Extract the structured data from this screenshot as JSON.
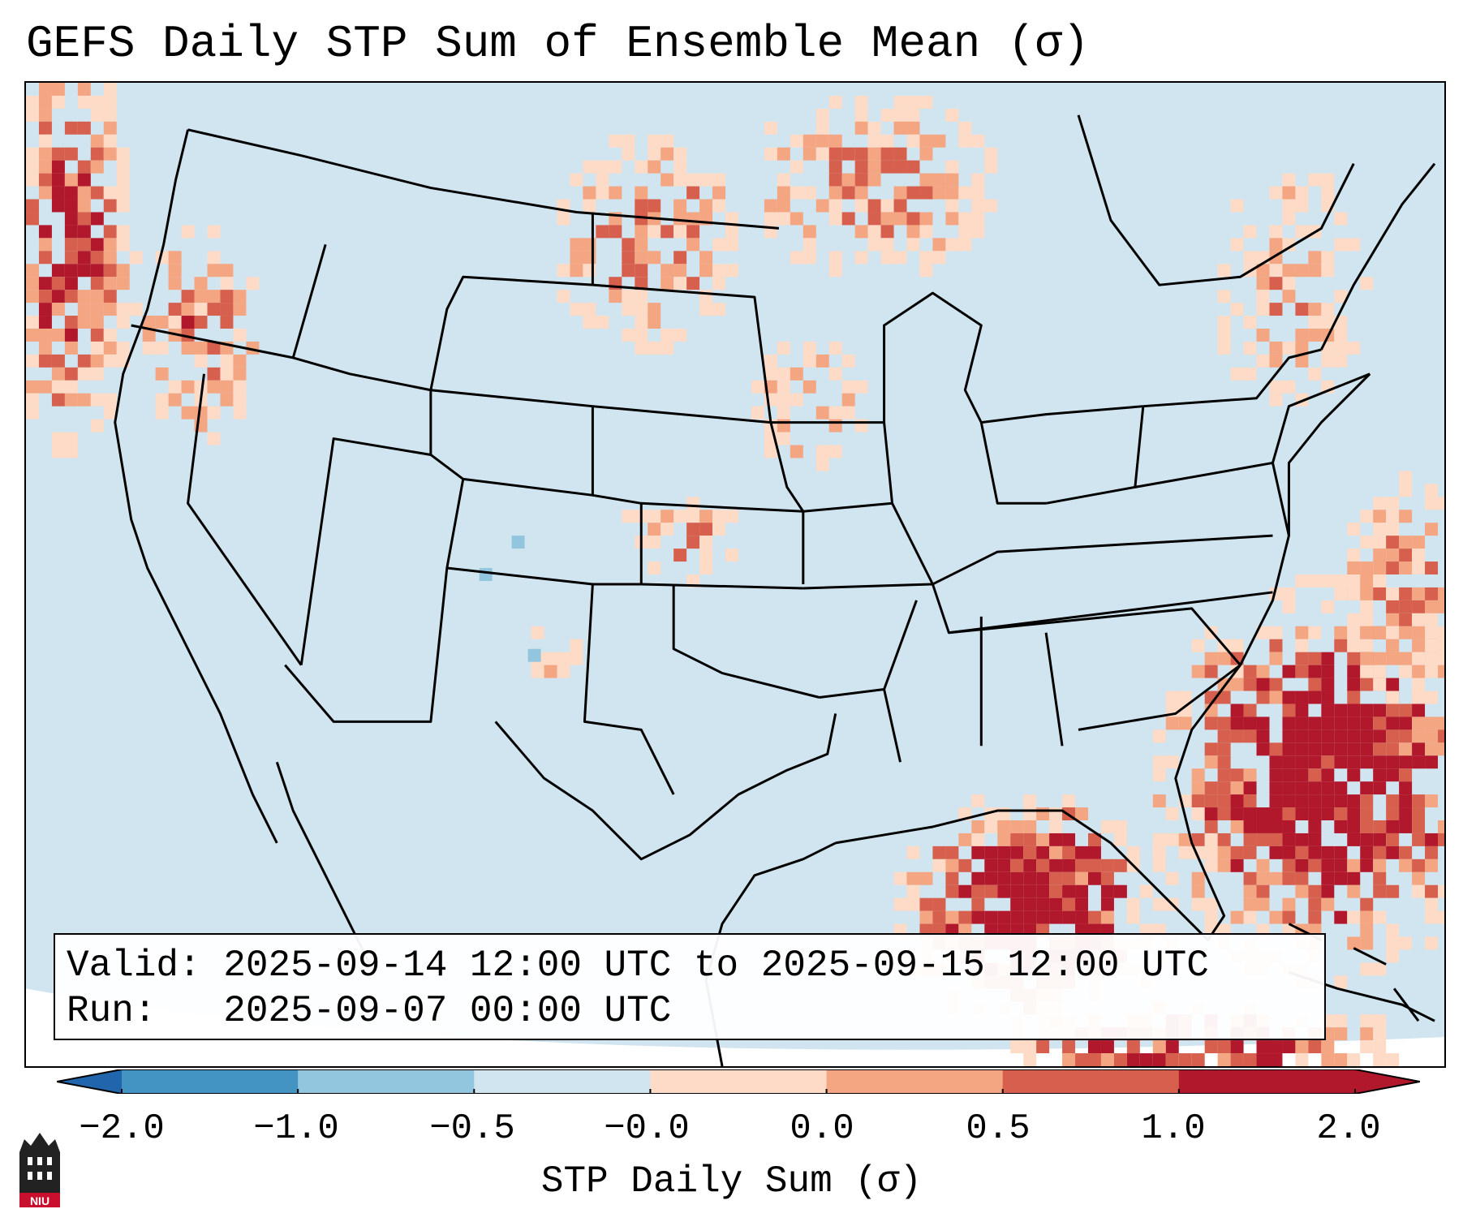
{
  "title": "GEFS Daily STP Sum of Ensemble Mean (σ)",
  "info": {
    "valid_label": "Valid:",
    "valid_value": "2025-09-14 12:00 UTC to 2025-09-15 12:00 UTC",
    "run_label": "Run:",
    "run_value": "2025-09-07 00:00 UTC"
  },
  "colorbar": {
    "label": "STP Daily Sum (σ)",
    "ticks": [
      "−2.0",
      "−1.0",
      "−0.5",
      "−0.0",
      "0.0",
      "0.5",
      "1.0",
      "2.0"
    ],
    "colors": [
      "#4393c3",
      "#92c5de",
      "#d1e5f0",
      "#fddbc7",
      "#f4a582",
      "#d6604d",
      "#b2182b"
    ],
    "under_color": "#2166ac",
    "over_color": "#b2182b"
  },
  "map": {
    "background_color": "#d1e5f0",
    "outside_color": "#ffffff"
  },
  "logo": {
    "text": "NIU",
    "color": "#c8102e"
  }
}
